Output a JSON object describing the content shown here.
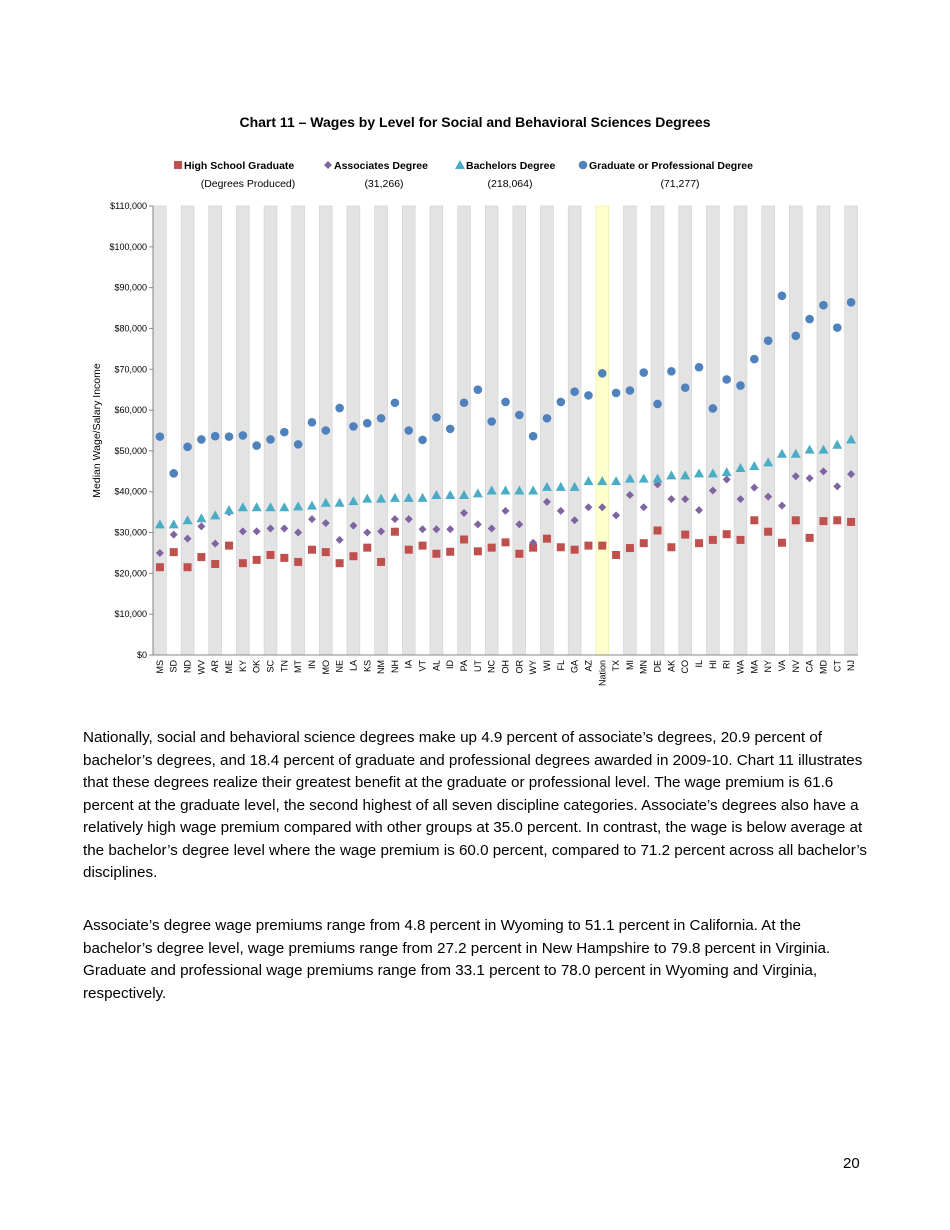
{
  "chart_data": {
    "type": "scatter",
    "title": "Chart 11 – Wages by Level for Social and Behavioral Sciences Degrees",
    "ylabel": "Median Wage/Salary Income",
    "xlabel": "",
    "ylim": [
      0,
      110000
    ],
    "yticks": [
      "$0",
      "$10,000",
      "$20,000",
      "$30,000",
      "$40,000",
      "$50,000",
      "$60,000",
      "$70,000",
      "$80,000",
      "$90,000",
      "$100,000",
      "$110,000"
    ],
    "legend_placement": "top",
    "legend_subheader": "(Degrees Produced)",
    "highlight_category": "Nation",
    "highlight_color": "#ffffcc",
    "band_color": "#e3e3e3",
    "categories": [
      "MS",
      "SD",
      "ND",
      "WV",
      "AR",
      "ME",
      "KY",
      "OK",
      "SC",
      "TN",
      "MT",
      "IN",
      "MO",
      "NE",
      "LA",
      "KS",
      "NM",
      "NH",
      "IA",
      "VT",
      "AL",
      "ID",
      "PA",
      "UT",
      "NC",
      "OH",
      "OR",
      "WY",
      "WI",
      "FL",
      "GA",
      "AZ",
      "Nation",
      "TX",
      "MI",
      "MN",
      "DE",
      "AK",
      "CO",
      "IL",
      "HI",
      "RI",
      "WA",
      "MA",
      "NY",
      "VA",
      "NV",
      "CA",
      "MD",
      "CT",
      "NJ"
    ],
    "series": [
      {
        "name": "High School Graduate",
        "count": "",
        "marker": "square",
        "color": "#c0504d",
        "values": [
          21500,
          25200,
          21500,
          24000,
          22300,
          26800,
          22500,
          23300,
          24500,
          23800,
          22800,
          25800,
          25200,
          22500,
          24200,
          26300,
          22800,
          30200,
          25800,
          26800,
          24800,
          25300,
          28300,
          25400,
          26300,
          27600,
          24800,
          26300,
          28500,
          26400,
          25800,
          26800,
          26800,
          24500,
          26200,
          27400,
          30500,
          26400,
          29500,
          27400,
          28200,
          29600,
          28200,
          33000,
          30200,
          27500,
          33000,
          28700,
          32800,
          33000,
          32600
        ]
      },
      {
        "name": "Associates Degree",
        "count": "(31,266)",
        "marker": "diamond",
        "color": "#8064a2",
        "values": [
          25000,
          29500,
          28500,
          31500,
          27300,
          35000,
          30300,
          30300,
          31000,
          31000,
          30000,
          33300,
          32300,
          28200,
          31700,
          30000,
          30300,
          33300,
          33300,
          30800,
          30800,
          30800,
          34800,
          32000,
          31000,
          35300,
          32000,
          27500,
          37500,
          35300,
          33000,
          36200,
          36200,
          34200,
          39200,
          36200,
          41800,
          38200,
          38200,
          35500,
          40300,
          43000,
          38200,
          41000,
          38800,
          36600,
          43800,
          43300,
          45000,
          41300,
          44300
        ]
      },
      {
        "name": "Bachelors Degree",
        "count": "(218,064)",
        "marker": "triangle",
        "color": "#4bacc6",
        "values": [
          32000,
          32000,
          33000,
          33500,
          34200,
          35500,
          36200,
          36200,
          36200,
          36200,
          36400,
          36600,
          37300,
          37300,
          37700,
          38300,
          38300,
          38500,
          38500,
          38500,
          39200,
          39200,
          39200,
          39600,
          40300,
          40300,
          40300,
          40300,
          41200,
          41200,
          41200,
          42600,
          42600,
          42600,
          43200,
          43200,
          43200,
          44000,
          44000,
          44500,
          44500,
          44800,
          45800,
          46300,
          47200,
          49300,
          49300,
          50300,
          50300,
          51500,
          52800
        ]
      },
      {
        "name": "Graduate or Professional Degree",
        "count": "(71,277)",
        "marker": "circle",
        "color": "#4f81bd",
        "values": [
          53500,
          44500,
          51000,
          52800,
          53600,
          53500,
          53800,
          51300,
          52800,
          54600,
          51600,
          57000,
          55000,
          60500,
          56000,
          56800,
          58000,
          61800,
          55000,
          52700,
          58200,
          55400,
          61800,
          65000,
          57200,
          62000,
          58800,
          53600,
          58000,
          62000,
          64500,
          63600,
          69000,
          64200,
          64800,
          69200,
          61500,
          69500,
          65500,
          70500,
          60400,
          67500,
          66000,
          72500,
          77000,
          88000,
          78200,
          82300,
          85700,
          80200,
          86400
        ]
      }
    ]
  },
  "body": {
    "paragraph1": "Nationally, social and behavioral science degrees make up 4.9 percent of associate’s degrees, 20.9 percent of bachelor’s degrees, and 18.4 percent of graduate and professional degrees awarded in 2009-10. Chart 11 illustrates that these degrees realize their greatest benefit at the graduate or professional level. The wage premium is 61.6 percent at the graduate level, the second highest of all seven discipline categories. Associate’s degrees also have a relatively high wage premium compared with other groups at 35.0 percent. In contrast, the wage is below average at the bachelor’s degree level where the wage premium is 60.0 percent, compared to 71.2 percent across all bachelor’s disciplines.",
    "paragraph2": "Associate’s degree wage premiums range from 4.8 percent in Wyoming to 51.1 percent in California. At the bachelor’s degree level, wage premiums range from 27.2 percent in New Hampshire to 79.8 percent in Virginia. Graduate and professional wage premiums range from 33.1 percent to 78.0 percent in Wyoming and Virginia, respectively."
  },
  "page_number": "20"
}
